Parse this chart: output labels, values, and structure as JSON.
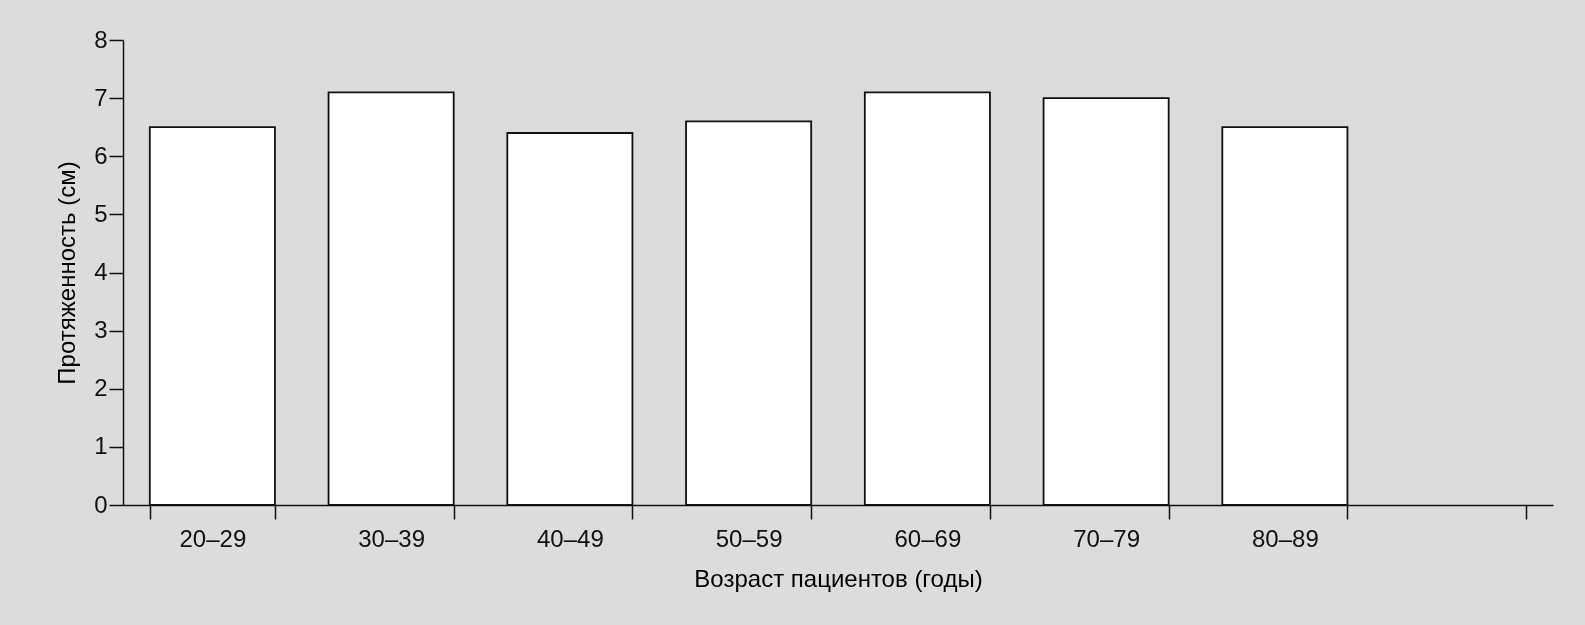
{
  "chart_data": {
    "type": "bar",
    "xlabel": "Возраст пациентов (годы)",
    "ylabel": "Протяженность (см)",
    "categories": [
      "20–29",
      "30–39",
      "40–49",
      "50–59",
      "60–69",
      "70–79",
      "80–89",
      null
    ],
    "values": [
      6.5,
      7.1,
      6.4,
      6.6,
      7.1,
      7.0,
      6.5,
      null
    ],
    "color": "#ffffff",
    "ylim": [
      0,
      8
    ],
    "yticks": [
      0,
      1,
      2,
      3,
      4,
      5,
      6,
      7,
      8
    ]
  }
}
